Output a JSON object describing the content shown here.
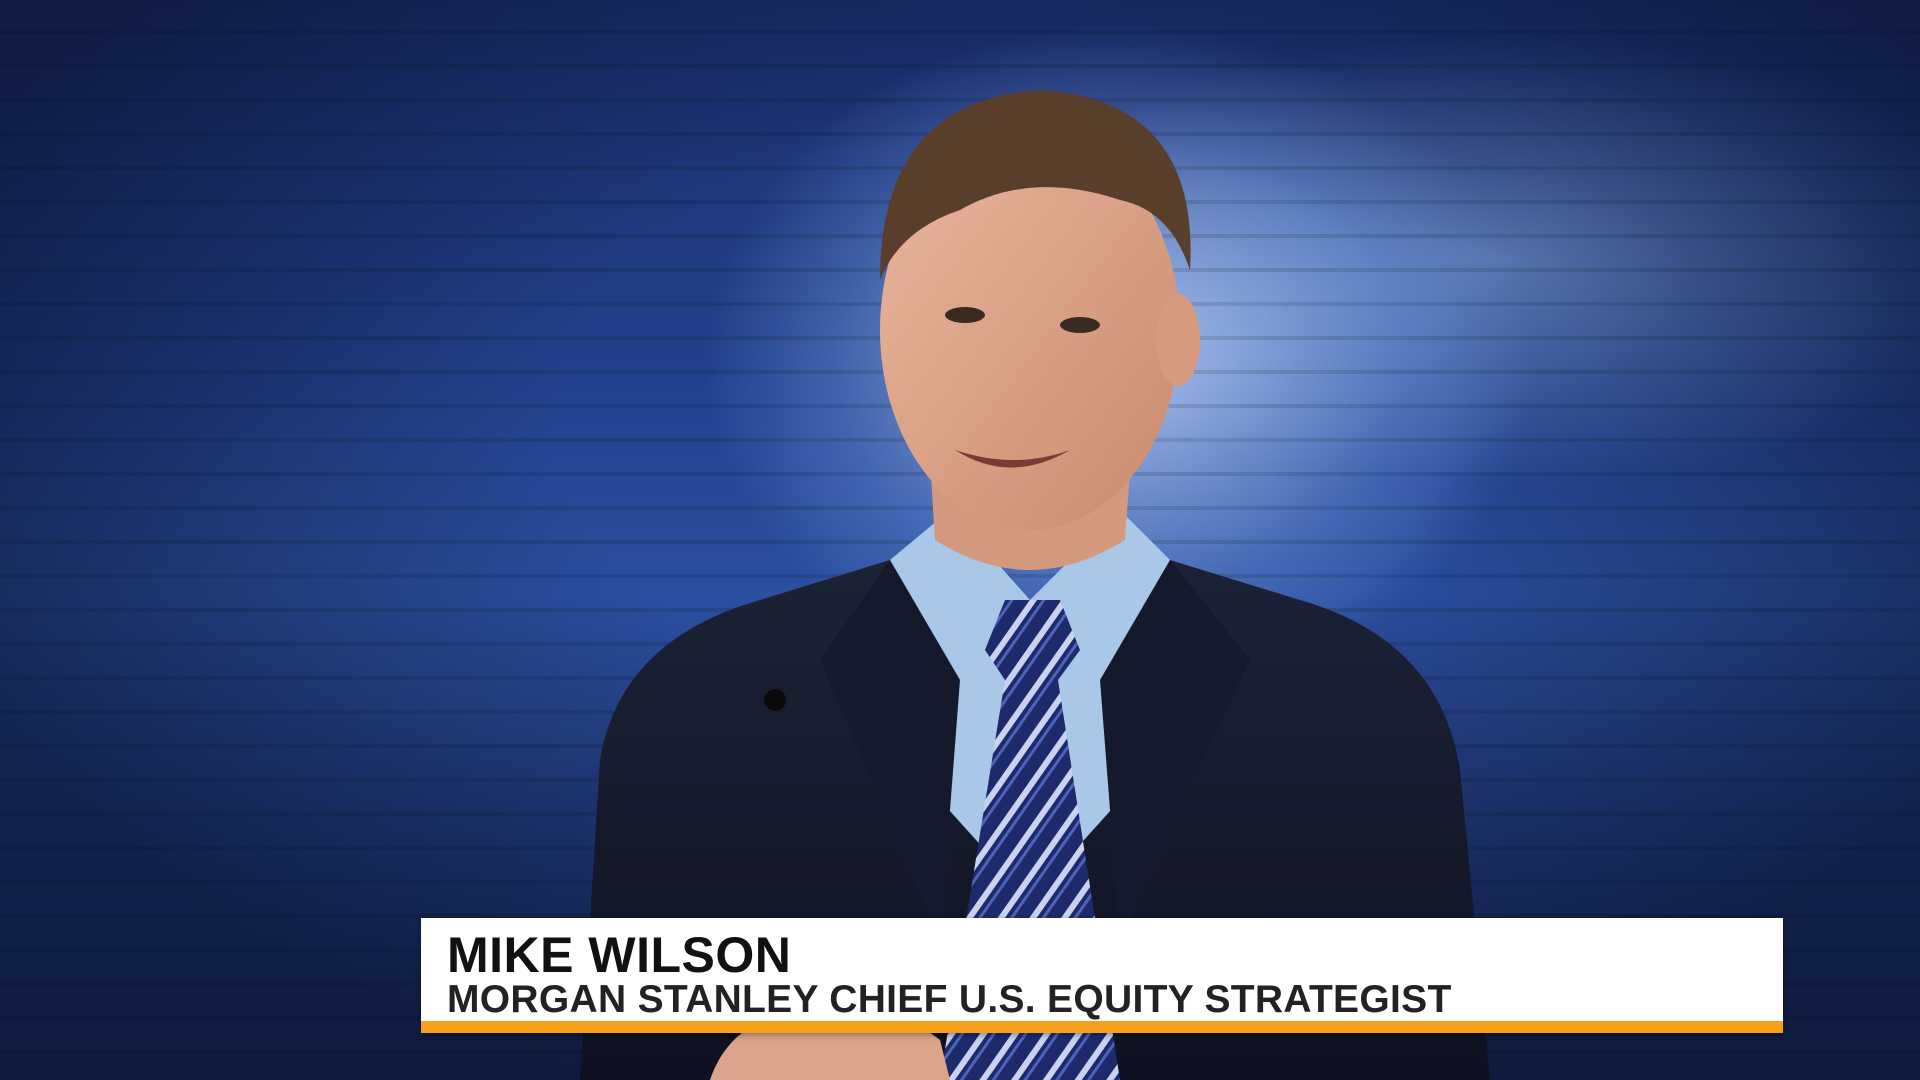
{
  "lower_third": {
    "name": "MIKE WILSON",
    "title": "MORGAN STANLEY CHIEF U.S. EQUITY STRATEGIST",
    "accent_color": "#f7a11a",
    "background_color": "#ffffff"
  },
  "background": {
    "description_colors": {
      "wall": "#23408c",
      "up": "#3dff8c",
      "down": "#ff5a6e"
    }
  }
}
